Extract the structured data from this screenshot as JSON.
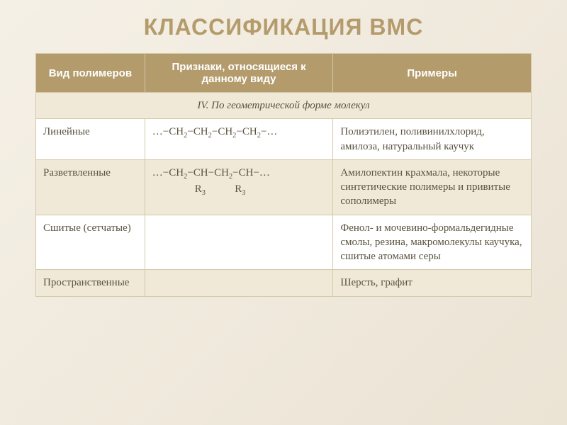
{
  "title": "КЛАССИФИКАЦИЯ ВМС",
  "headers": {
    "col1": "Вид полимеров",
    "col2": "Признаки, относящиеся к данному виду",
    "col3": "Примеры"
  },
  "section": "IV. По геометрической форме молекул",
  "rows": [
    {
      "type": "Линейные",
      "formula_html": "…−CH<sub>2</sub>−CH<sub>2</sub>−CH<sub>2</sub>−CH<sub>2</sub>−…",
      "examples": "Полиэтилен, поливинилхлорид, амилоза, натуральный каучук"
    },
    {
      "type": "Разветвленные",
      "formula_html": "…−CH<sub>2</sub>−CH−CH<sub>2</sub>−CH−…<br><span class=\"indent\">R<sub>3</sub>&nbsp;&nbsp;&nbsp;&nbsp;&nbsp;&nbsp;&nbsp;&nbsp;&nbsp;&nbsp;&nbsp;R<sub>3</sub></span>",
      "examples": "Амилопектин крахмала, некоторые синтетические полимеры и привитые сополимеры"
    },
    {
      "type": "Сшитые (сетчатые)",
      "formula_html": "",
      "examples": "Фенол- и мочевино-формальдегидные смолы, резина,  макромолекулы каучука, сшитые  атомами серы"
    },
    {
      "type": "Пространственные",
      "formula_html": "",
      "examples": "Шерсть, графит"
    }
  ],
  "colors": {
    "title_color": "#b49b6c",
    "header_bg": "#b49b6c",
    "header_text": "#ffffff",
    "row_odd_bg": "#ffffff",
    "row_even_bg": "#f0e9d8",
    "border": "#d4c8a8",
    "text": "#5a5340",
    "slide_bg_start": "#f5f0e6",
    "slide_bg_end": "#ebe3d4"
  },
  "typography": {
    "title_fontsize": 32,
    "header_fontsize": 15,
    "cell_fontsize": 15
  },
  "layout": {
    "col_widths_pct": [
      22,
      38,
      40
    ],
    "slide_width": 800,
    "slide_height": 600
  }
}
